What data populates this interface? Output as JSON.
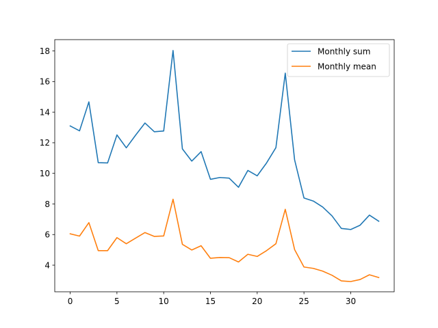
{
  "chart_data": {
    "type": "line",
    "title": "",
    "xlabel": "",
    "ylabel": "",
    "xlim": [
      -1.65,
      34.65
    ],
    "ylim": [
      2.26,
      18.74
    ],
    "xticks": [
      0,
      5,
      10,
      15,
      20,
      25,
      30
    ],
    "yticks": [
      4,
      6,
      8,
      10,
      12,
      14,
      16,
      18
    ],
    "grid": false,
    "legend_position": "top-right",
    "x": [
      0,
      1,
      2,
      3,
      4,
      5,
      6,
      7,
      8,
      9,
      10,
      11,
      12,
      13,
      14,
      15,
      16,
      17,
      18,
      19,
      20,
      21,
      22,
      23,
      24,
      25,
      26,
      27,
      28,
      29,
      30,
      31,
      32,
      33
    ],
    "series": [
      {
        "name": "Monthly sum",
        "color": "#1f77b4",
        "values": [
          13.1,
          12.78,
          14.67,
          10.7,
          10.68,
          12.51,
          11.67,
          12.5,
          13.29,
          12.72,
          12.77,
          18.03,
          11.6,
          10.8,
          11.42,
          9.61,
          9.73,
          9.69,
          9.09,
          10.19,
          9.84,
          10.68,
          11.68,
          16.55,
          10.88,
          8.39,
          8.19,
          7.8,
          7.22,
          6.4,
          6.33,
          6.61,
          7.27,
          6.87
        ]
      },
      {
        "name": "Monthly mean",
        "color": "#ff7f0e",
        "values": [
          6.05,
          5.9,
          6.78,
          4.95,
          4.95,
          5.8,
          5.4,
          5.77,
          6.13,
          5.88,
          5.91,
          8.31,
          5.36,
          4.99,
          5.27,
          4.45,
          4.5,
          4.49,
          4.21,
          4.71,
          4.57,
          4.95,
          5.4,
          7.65,
          5.02,
          3.88,
          3.79,
          3.61,
          3.34,
          2.97,
          2.93,
          3.06,
          3.37,
          3.19
        ]
      }
    ]
  }
}
